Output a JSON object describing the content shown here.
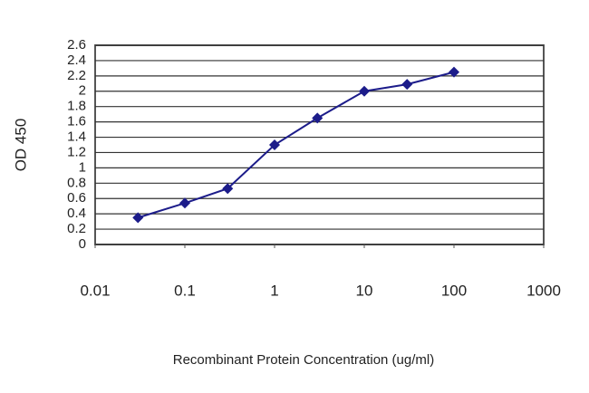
{
  "chart_data": {
    "type": "line",
    "y_label": "OD 450",
    "x_label": "Recombinant Protein Concentration (ug/ml)",
    "x": [
      0.03,
      0.1,
      0.3,
      1,
      3,
      10,
      30,
      100
    ],
    "values": [
      0.35,
      0.54,
      0.73,
      1.3,
      1.65,
      2.0,
      2.09,
      2.25
    ],
    "color": "#1c1c8a",
    "xscale": "log",
    "xlim": [
      0.01,
      1000
    ],
    "xticks": [
      0.01,
      0.1,
      1,
      10,
      100,
      1000
    ],
    "ylim": [
      0,
      2.6
    ],
    "yticks": [
      0,
      0.2,
      0.4,
      0.6,
      0.8,
      1,
      1.2,
      1.4,
      1.6,
      1.8,
      2,
      2.2,
      2.4,
      2.6
    ],
    "grid": true
  }
}
